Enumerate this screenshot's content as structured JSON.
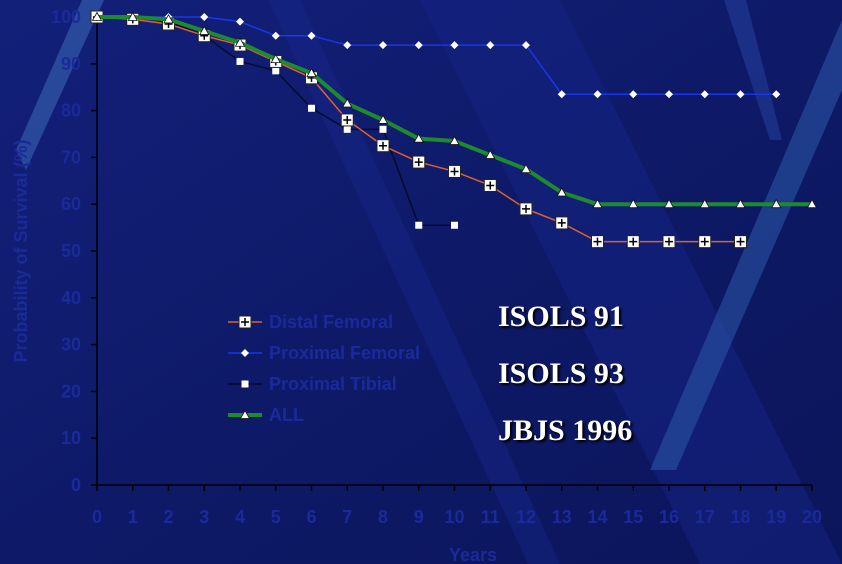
{
  "colors": {
    "background": "#101c6e",
    "axis": "#000000",
    "tick_text": "#1a2a9a",
    "legend_text": "#1a2a9a",
    "annotation_text": "#ffffff",
    "distal_femoral": "#e0602a",
    "proximal_femoral": "#1a36e8",
    "proximal_tibial": "#050a30",
    "all": "#1e8a2e"
  },
  "annotations": [
    "ISOLS 91",
    "ISOLS 93",
    "JBJS 1996"
  ],
  "chart_data": {
    "type": "line",
    "title": "",
    "xlabel": "Years",
    "ylabel": "Probability of Survival (%)",
    "xlim": [
      0,
      20
    ],
    "ylim": [
      0,
      100
    ],
    "x_ticks": [
      0,
      1,
      2,
      3,
      4,
      5,
      6,
      7,
      8,
      9,
      10,
      11,
      12,
      13,
      14,
      15,
      16,
      17,
      18,
      19,
      20
    ],
    "y_ticks": [
      0,
      10,
      20,
      30,
      40,
      50,
      60,
      70,
      80,
      90,
      100
    ],
    "grid": false,
    "legend_position": "center-left",
    "series": [
      {
        "name": "Distal Femoral",
        "marker": "square-plus",
        "color_key": "distal_femoral",
        "line_width": 1.5,
        "x": [
          0,
          1,
          2,
          3,
          4,
          5,
          6,
          7,
          8,
          9,
          10,
          11,
          12,
          13,
          14,
          15,
          16,
          17,
          18
        ],
        "y": [
          100,
          99.5,
          98.5,
          96,
          94,
          90.5,
          87,
          78,
          72.5,
          69,
          67,
          64,
          59,
          56,
          52,
          52,
          52,
          52,
          52
        ]
      },
      {
        "name": "Proximal Femoral",
        "marker": "diamond",
        "color_key": "proximal_femoral",
        "line_width": 1.5,
        "x": [
          0,
          1,
          2,
          3,
          4,
          5,
          6,
          7,
          8,
          9,
          10,
          11,
          12,
          13,
          14,
          15,
          16,
          17,
          18,
          19
        ],
        "y": [
          100,
          100,
          100,
          100,
          99,
          96,
          96,
          94,
          94,
          94,
          94,
          94,
          94,
          83.5,
          83.5,
          83.5,
          83.5,
          83.5,
          83.5,
          83.5
        ]
      },
      {
        "name": "Proximal Tibial",
        "marker": "square",
        "color_key": "proximal_tibial",
        "line_width": 1.5,
        "x": [
          0,
          1,
          2,
          3,
          4,
          5,
          6,
          7,
          8,
          9,
          10
        ],
        "y": [
          100,
          100,
          99,
          96,
          90.5,
          88.5,
          80.5,
          76,
          76,
          55.5,
          55.5
        ]
      },
      {
        "name": "ALL",
        "marker": "triangle",
        "color_key": "all",
        "line_width": 4,
        "x": [
          0,
          1,
          2,
          3,
          4,
          5,
          6,
          7,
          8,
          9,
          10,
          11,
          12,
          13,
          14,
          15,
          16,
          17,
          18,
          19,
          20
        ],
        "y": [
          100,
          100,
          99.5,
          97,
          94.5,
          91,
          88,
          81.5,
          78,
          74,
          73.5,
          70.5,
          67.5,
          62.5,
          60,
          60,
          60,
          60,
          60,
          60,
          60
        ]
      }
    ]
  }
}
